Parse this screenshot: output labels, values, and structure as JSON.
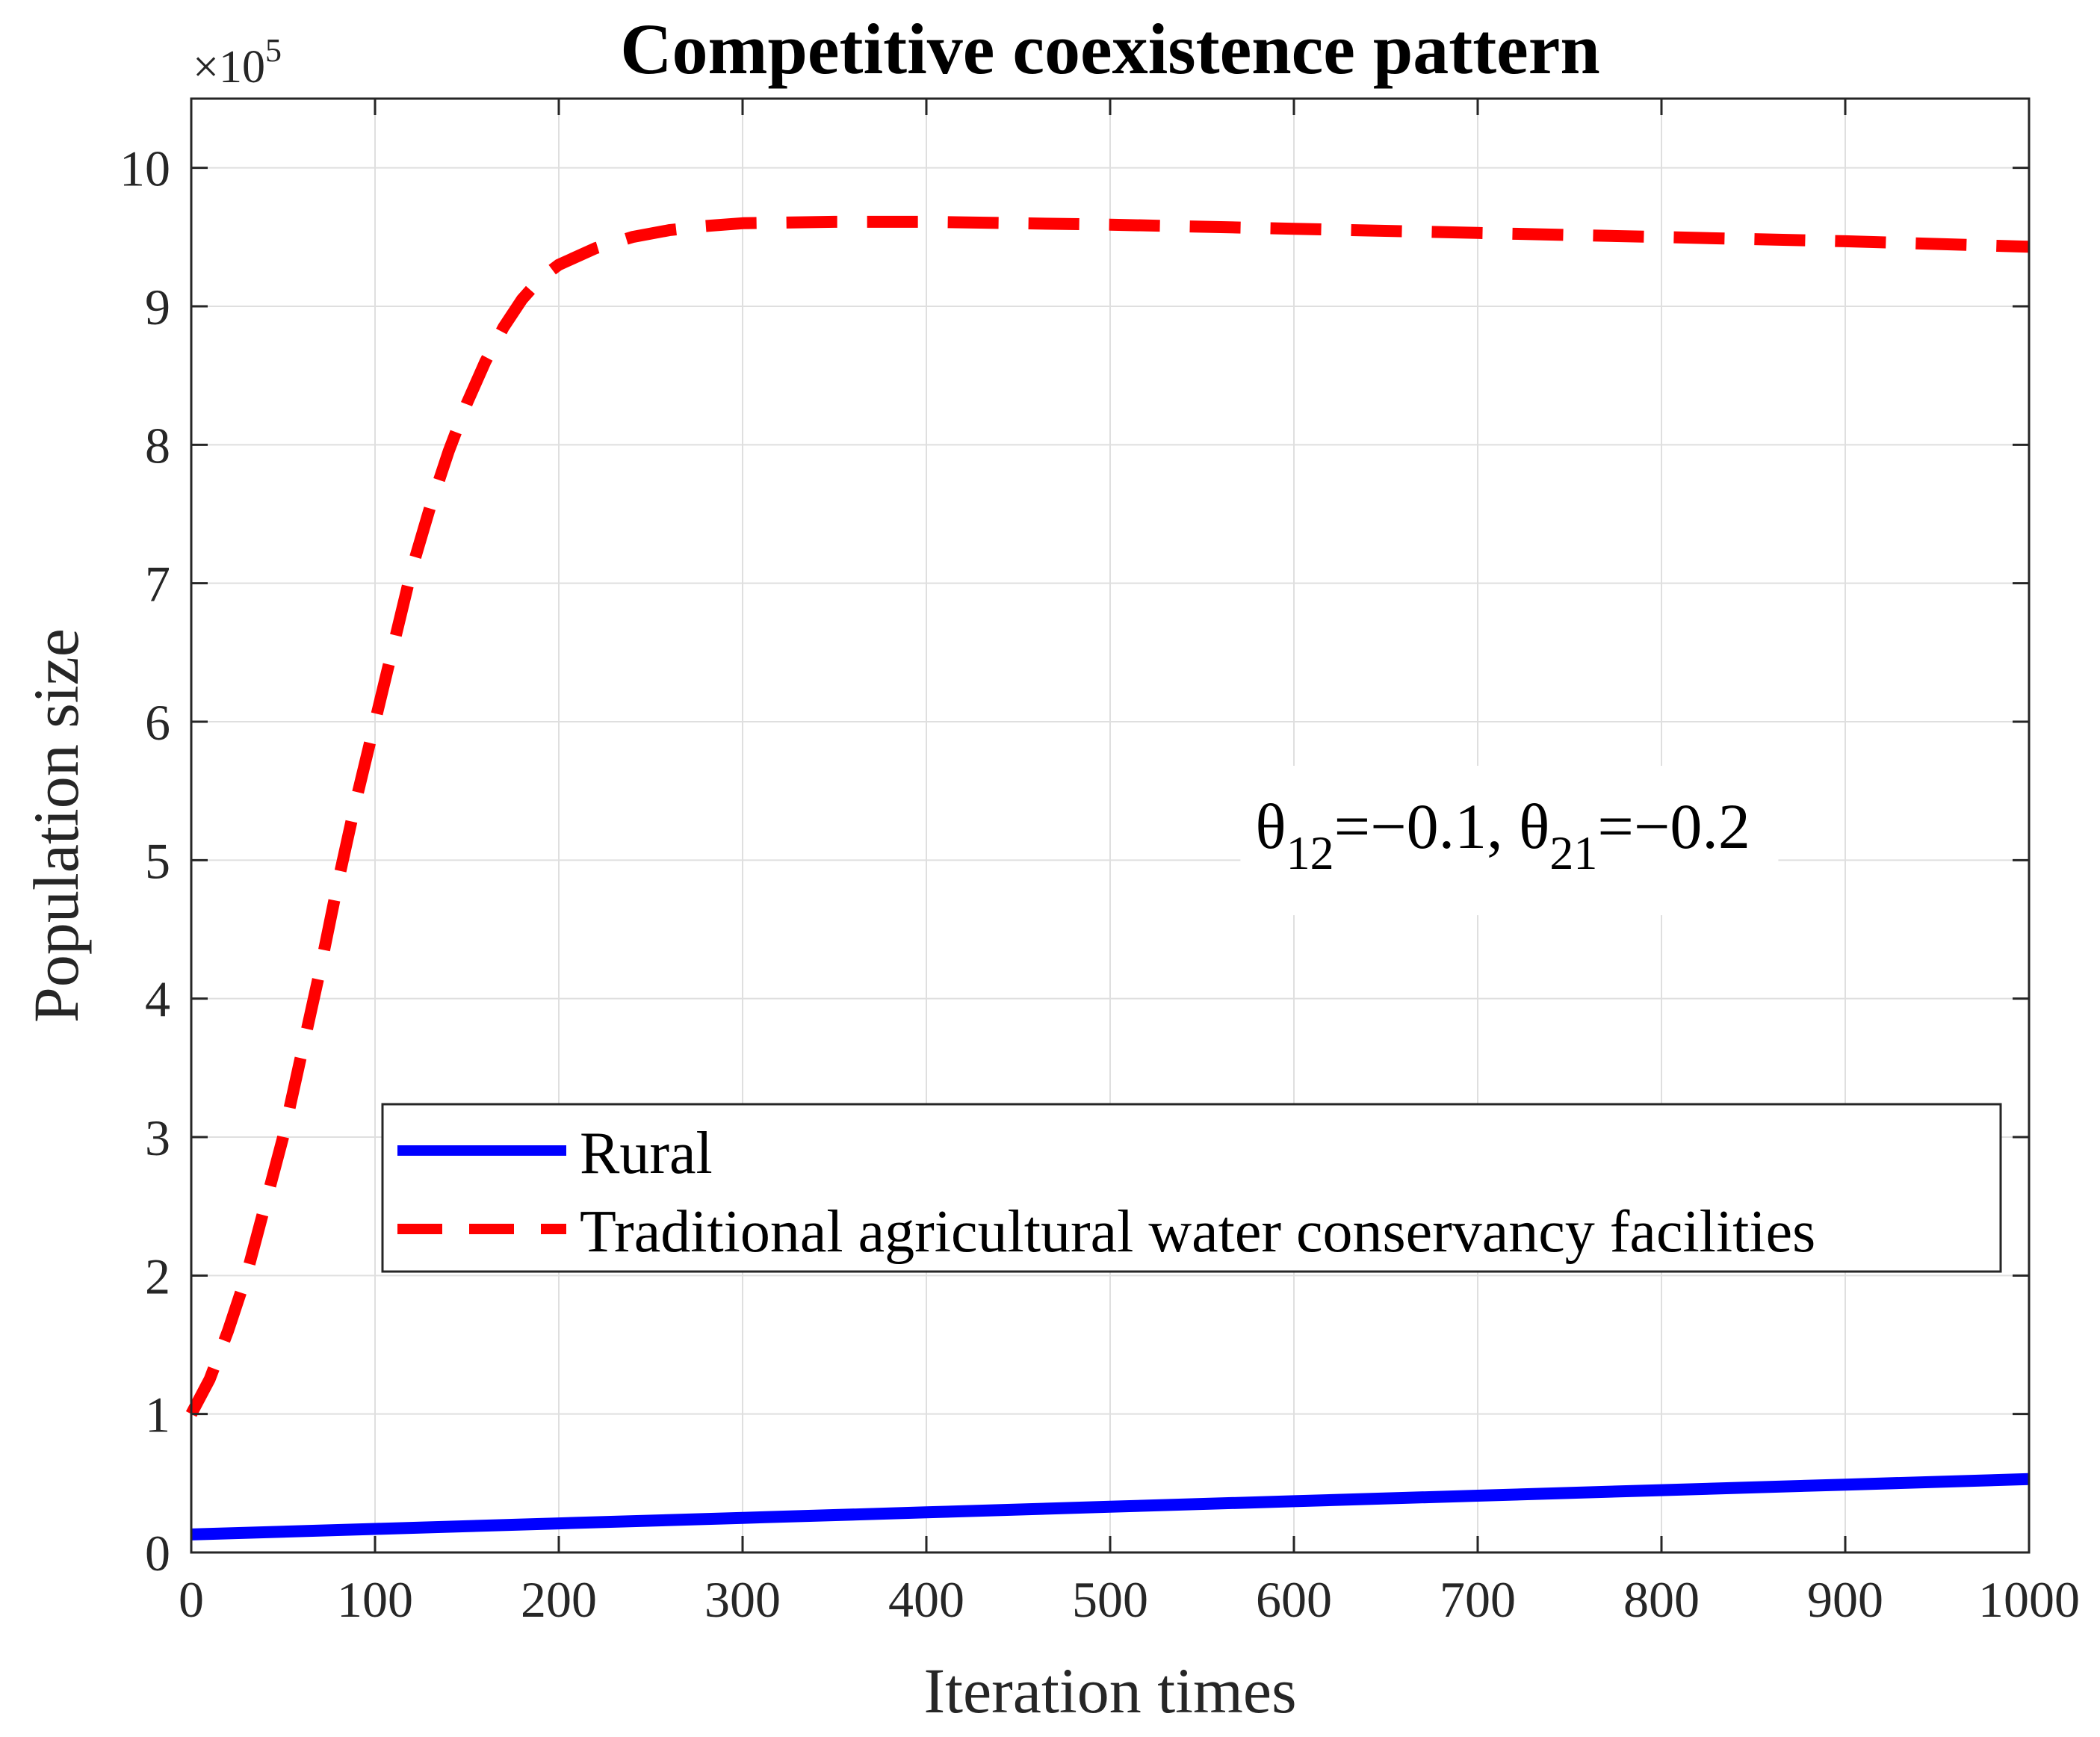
{
  "chart_data": {
    "type": "line",
    "title": "Competitive coexistence pattern",
    "xlabel": "Iteration times",
    "ylabel": "Population size",
    "y_exponent_base": "10",
    "y_exponent": "5",
    "xlim": [
      0,
      1000
    ],
    "ylim": [
      0,
      10.5
    ],
    "xticks": [
      0,
      100,
      200,
      300,
      400,
      500,
      600,
      700,
      800,
      900,
      1000
    ],
    "yticks": [
      0,
      1,
      2,
      3,
      4,
      5,
      6,
      7,
      8,
      9,
      10
    ],
    "grid": true,
    "legend_location": "lower-right",
    "annotation": {
      "theta": "θ",
      "sub1": "12",
      "part1": "=−0.1, ",
      "sub2": "21",
      "part2": "=−0.2",
      "x": 640,
      "y": 5.25
    },
    "series": [
      {
        "name": "Rural",
        "color": "#0000ff",
        "style": "solid",
        "x": [
          0,
          100,
          200,
          300,
          400,
          500,
          600,
          700,
          800,
          900,
          1000
        ],
        "y": [
          0.13,
          0.17,
          0.21,
          0.25,
          0.29,
          0.33,
          0.37,
          0.41,
          0.45,
          0.49,
          0.53
        ]
      },
      {
        "name": "Traditional agricultural water conservancy facilities",
        "color": "#ff0000",
        "style": "dashed",
        "x": [
          0,
          10,
          20,
          30,
          40,
          50,
          60,
          70,
          80,
          90,
          100,
          110,
          120,
          130,
          140,
          150,
          160,
          170,
          180,
          190,
          200,
          220,
          240,
          260,
          280,
          300,
          350,
          400,
          500,
          600,
          700,
          800,
          900,
          1000
        ],
        "y": [
          1.0,
          1.25,
          1.6,
          2.0,
          2.5,
          3.0,
          3.6,
          4.2,
          4.85,
          5.45,
          6.0,
          6.55,
          7.1,
          7.55,
          7.95,
          8.3,
          8.6,
          8.85,
          9.05,
          9.2,
          9.3,
          9.42,
          9.5,
          9.55,
          9.58,
          9.6,
          9.61,
          9.61,
          9.59,
          9.56,
          9.53,
          9.5,
          9.47,
          9.43
        ]
      }
    ]
  }
}
